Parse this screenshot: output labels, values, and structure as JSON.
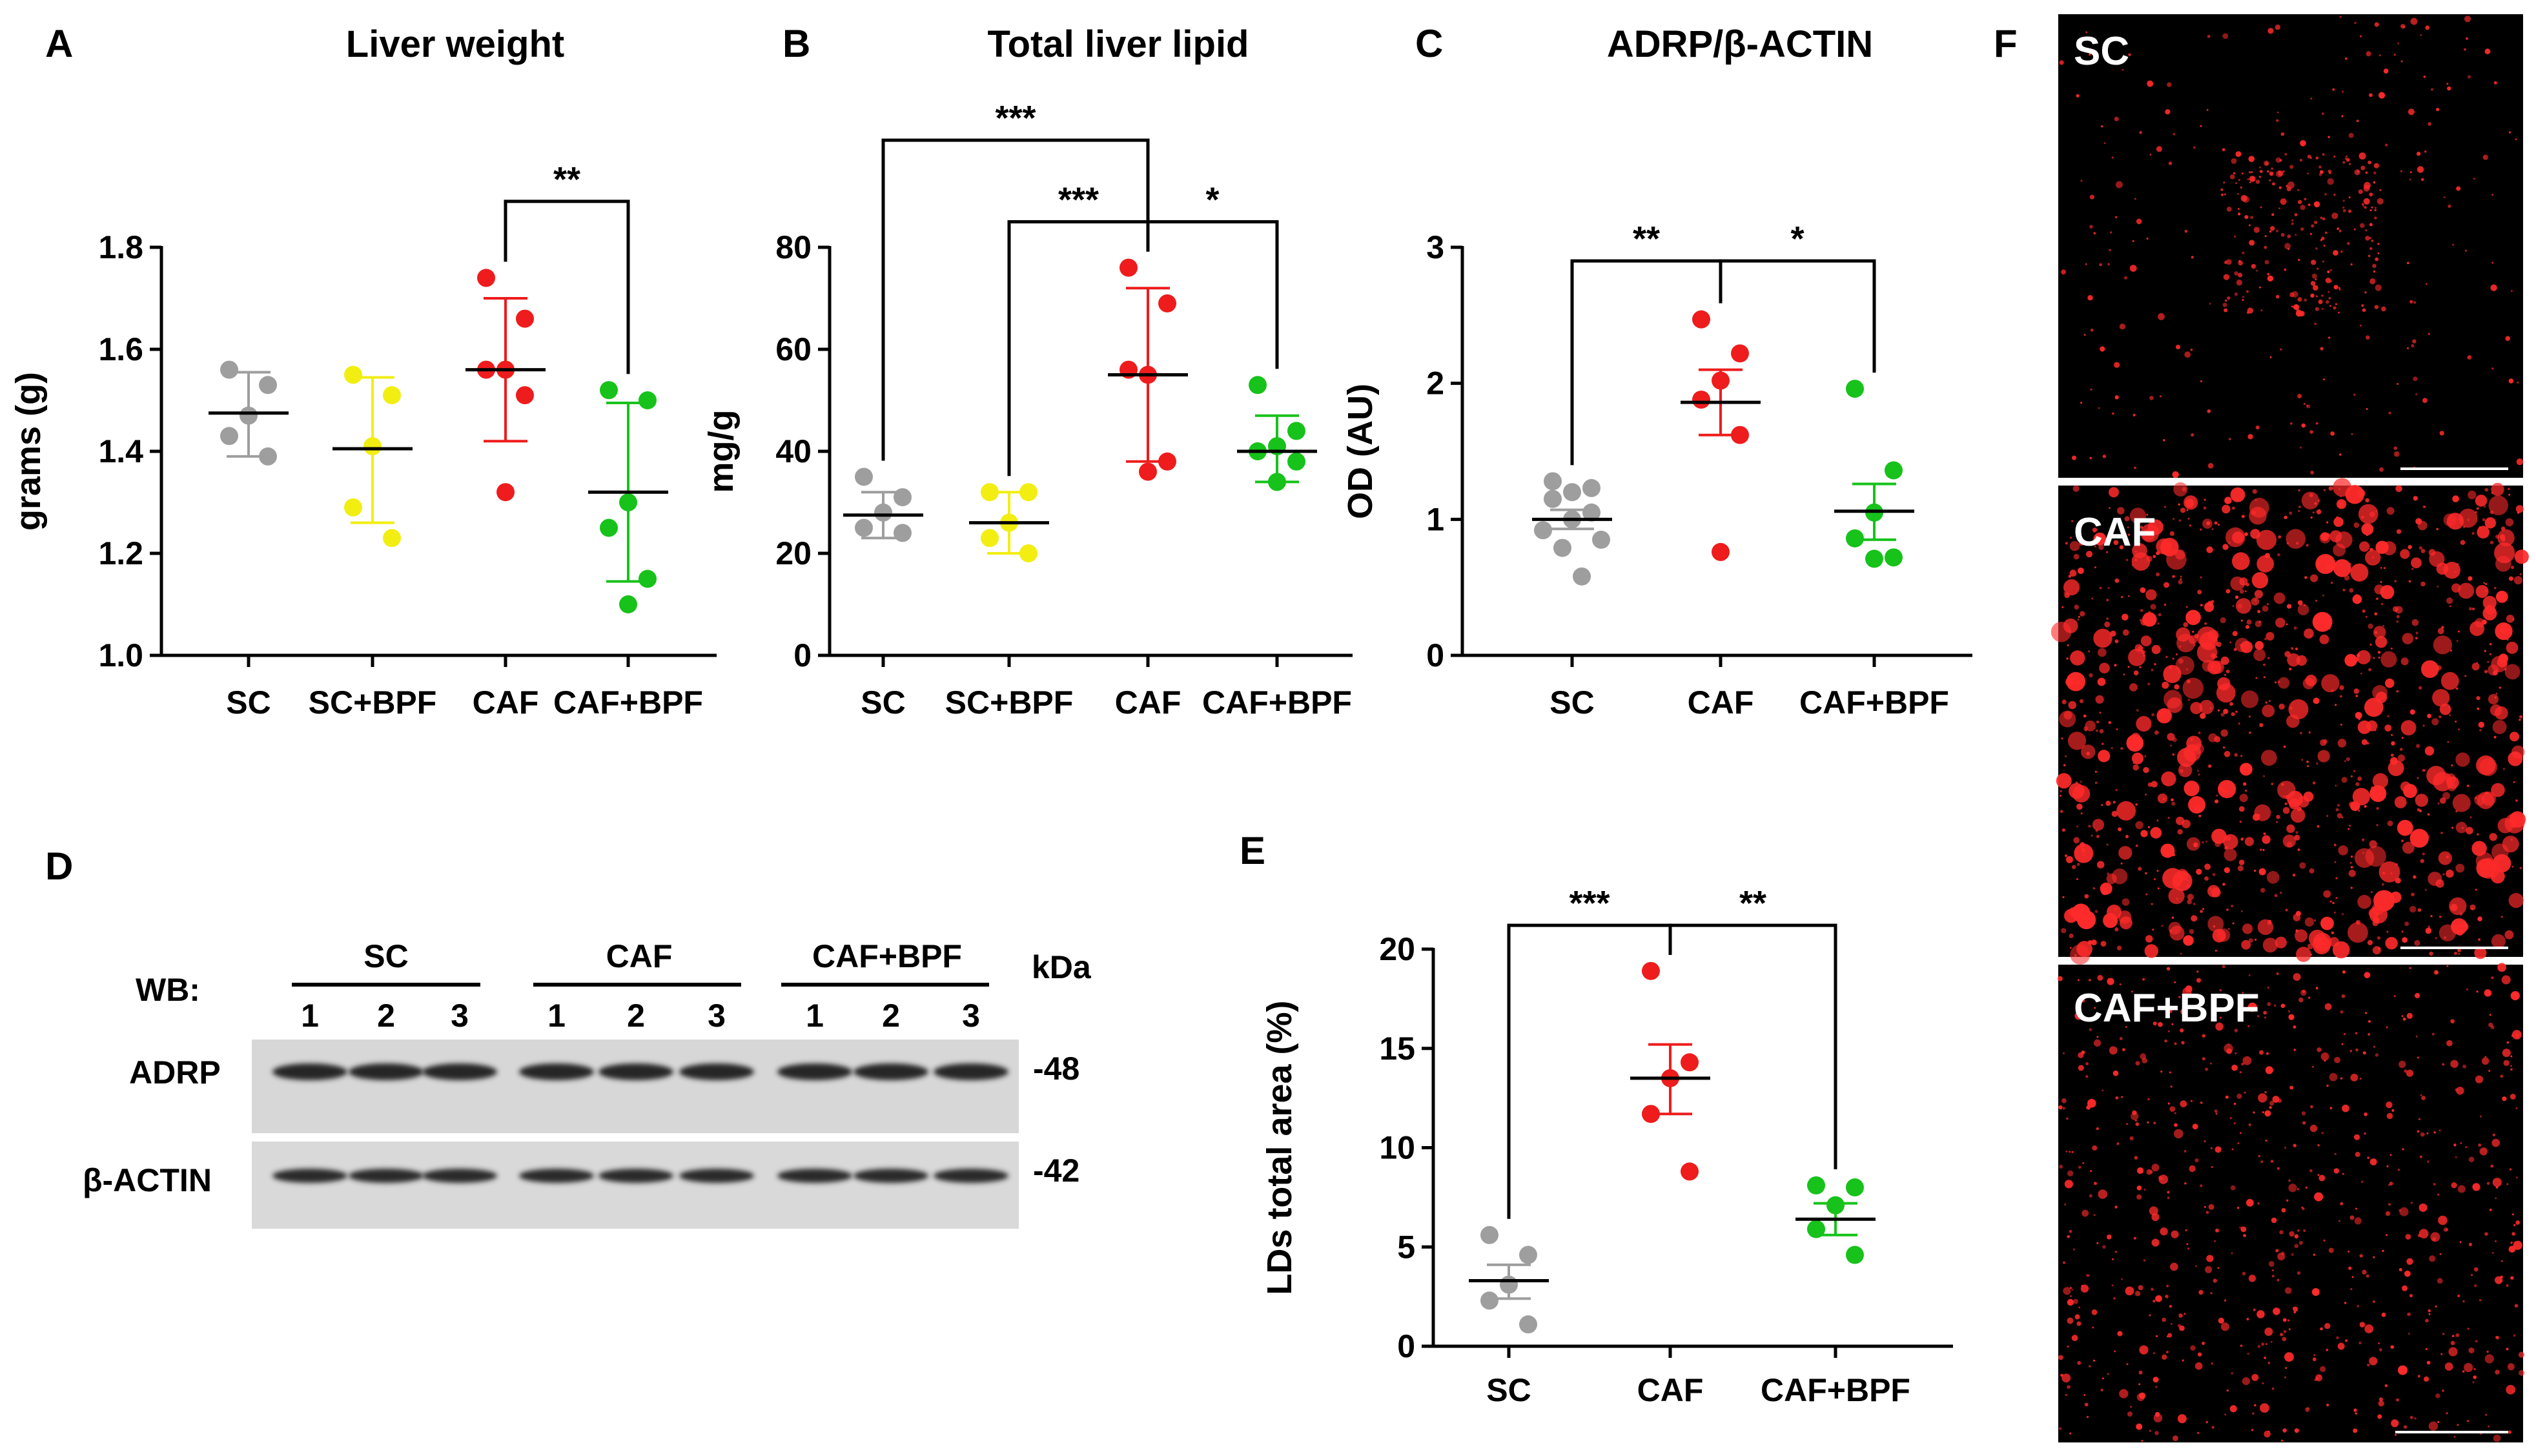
{
  "colors": {
    "SC": "#9e9e9e",
    "SC+BPF": "#f2ee12",
    "CAF": "#ee1c1c",
    "CAF+BPF": "#17c21b",
    "axis": "#000000",
    "micro_bg": "#000000",
    "lipid": "#ff2a2a"
  },
  "panel_labels": {
    "A": "A",
    "B": "B",
    "C": "C",
    "D": "D",
    "E": "E",
    "F": "F"
  },
  "chart_data": [
    {
      "id": "A",
      "type": "scatter",
      "title": "Liver weight",
      "ylabel": "grams (g)",
      "ylim": [
        1.0,
        1.8
      ],
      "yticks": [
        1.0,
        1.2,
        1.4,
        1.6,
        1.8
      ],
      "ytick_labels": [
        "1.0",
        "1.2",
        "1.4",
        "1.6",
        "1.8"
      ],
      "categories": [
        "SC",
        "SC+BPF",
        "CAF",
        "CAF+BPF"
      ],
      "groups": [
        {
          "name": "SC",
          "points": [
            1.56,
            1.53,
            1.47,
            1.43,
            1.39
          ],
          "mean": 1.475,
          "error": [
            1.39,
            1.555
          ]
        },
        {
          "name": "SC+BPF",
          "points": [
            1.55,
            1.51,
            1.41,
            1.29,
            1.23
          ],
          "mean": 1.405,
          "error": [
            1.26,
            1.545
          ]
        },
        {
          "name": "CAF",
          "points": [
            1.74,
            1.66,
            1.56,
            1.56,
            1.51,
            1.32
          ],
          "mean": 1.56,
          "error": [
            1.42,
            1.7
          ]
        },
        {
          "name": "CAF+BPF",
          "points": [
            1.52,
            1.5,
            1.3,
            1.25,
            1.15,
            1.1
          ],
          "mean": 1.32,
          "error": [
            1.145,
            1.495
          ]
        }
      ],
      "significance": [
        {
          "from": 2,
          "to": 3,
          "label": "**",
          "y": 1.89
        }
      ]
    },
    {
      "id": "B",
      "type": "scatter",
      "title": "Total liver lipid",
      "ylabel": "mg/g",
      "ylim": [
        0,
        80
      ],
      "yticks": [
        0,
        20,
        40,
        60,
        80
      ],
      "ytick_labels": [
        "0",
        "20",
        "40",
        "60",
        "80"
      ],
      "categories": [
        "SC",
        "SC+BPF",
        "CAF",
        "CAF+BPF"
      ],
      "groups": [
        {
          "name": "SC",
          "points": [
            35,
            31,
            28,
            25,
            24
          ],
          "mean": 27.5,
          "error": [
            23,
            32
          ]
        },
        {
          "name": "SC+BPF",
          "points": [
            32,
            32,
            26,
            23,
            20
          ],
          "mean": 26,
          "error": [
            20,
            32
          ]
        },
        {
          "name": "CAF",
          "points": [
            76,
            69,
            55,
            56,
            38,
            36
          ],
          "mean": 55,
          "error": [
            38,
            72
          ]
        },
        {
          "name": "CAF+BPF",
          "points": [
            53,
            44,
            41,
            40,
            38,
            34
          ],
          "mean": 40,
          "error": [
            34,
            47
          ]
        }
      ],
      "significance": [
        {
          "from": 0,
          "to": 2,
          "label": "***",
          "y": 101
        },
        {
          "from": 1,
          "to": 2,
          "label": "***",
          "y": 85
        },
        {
          "from": 2,
          "to": 3,
          "label": "*",
          "y": 85
        }
      ]
    },
    {
      "id": "C",
      "type": "scatter",
      "title": "ADRP/β-ACTIN",
      "ylabel": "OD  (AU)",
      "ylim": [
        0,
        3
      ],
      "yticks": [
        0,
        1,
        2,
        3
      ],
      "ytick_labels": [
        "0",
        "1",
        "2",
        "3"
      ],
      "categories": [
        "SC",
        "CAF",
        "CAF+BPF"
      ],
      "groups": [
        {
          "name": "SC",
          "points": [
            1.28,
            1.23,
            1.2,
            1.15,
            1.05,
            1.0,
            0.92,
            0.85,
            0.79,
            0.58
          ],
          "mean": 1.0,
          "error": [
            0.93,
            1.07
          ]
        },
        {
          "name": "CAF",
          "points": [
            2.47,
            2.22,
            2.02,
            1.88,
            1.62,
            0.76
          ],
          "mean": 1.86,
          "error": [
            1.62,
            2.1
          ]
        },
        {
          "name": "CAF+BPF",
          "points": [
            1.96,
            1.36,
            1.05,
            0.86,
            0.72,
            0.71
          ],
          "mean": 1.06,
          "error": [
            0.85,
            1.26
          ]
        }
      ],
      "significance": [
        {
          "from": 0,
          "to": 1,
          "label": "**",
          "y": 2.9
        },
        {
          "from": 1,
          "to": 2,
          "label": "*",
          "y": 2.9
        }
      ]
    },
    {
      "id": "E",
      "type": "scatter",
      "title": "",
      "ylabel": "LDs total area (%)",
      "ylim": [
        0,
        20
      ],
      "yticks": [
        0,
        5,
        10,
        15,
        20
      ],
      "ytick_labels": [
        "0",
        "5",
        "10",
        "15",
        "20"
      ],
      "categories": [
        "SC",
        "CAF",
        "CAF+BPF"
      ],
      "groups": [
        {
          "name": "SC",
          "points": [
            5.6,
            4.6,
            3.1,
            2.3,
            1.1
          ],
          "mean": 3.3,
          "error": [
            2.4,
            4.1
          ]
        },
        {
          "name": "CAF",
          "points": [
            18.9,
            14.3,
            13.5,
            11.7,
            8.8
          ],
          "mean": 13.5,
          "error": [
            11.7,
            15.2
          ]
        },
        {
          "name": "CAF+BPF",
          "points": [
            8.1,
            8.0,
            7.1,
            5.9,
            4.6
          ],
          "mean": 6.4,
          "error": [
            5.6,
            7.2
          ]
        }
      ],
      "significance": [
        {
          "from": 0,
          "to": 1,
          "label": "***",
          "y": 21.2
        },
        {
          "from": 1,
          "to": 2,
          "label": "**",
          "y": 21.2
        }
      ]
    }
  ],
  "western_blot": {
    "wb_label": "WB:",
    "groups": [
      {
        "name": "SC",
        "lanes": [
          "1",
          "2",
          "3"
        ]
      },
      {
        "name": "CAF",
        "lanes": [
          "1",
          "2",
          "3"
        ]
      },
      {
        "name": "CAF+BPF",
        "lanes": [
          "1",
          "2",
          "3"
        ]
      }
    ],
    "kda_label": "kDa",
    "rows": [
      {
        "protein": "ADRP",
        "mw": "-48"
      },
      {
        "protein": "β-ACTIN",
        "mw": "-42"
      }
    ]
  },
  "micrographs": {
    "images": [
      {
        "label": "SC",
        "density": "low"
      },
      {
        "label": "CAF",
        "density": "high"
      },
      {
        "label": "CAF+BPF",
        "density": "medium"
      }
    ]
  }
}
